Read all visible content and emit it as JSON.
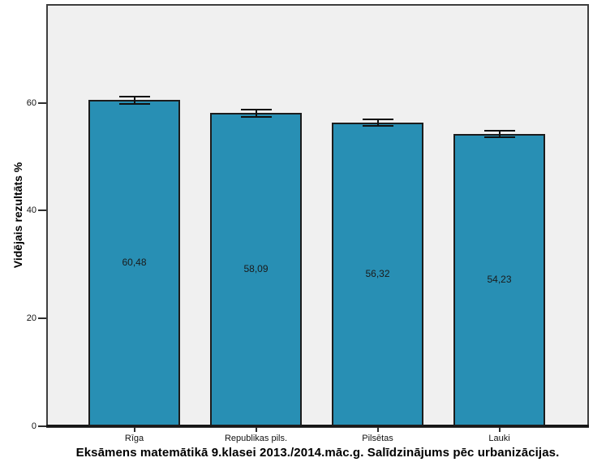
{
  "figure": {
    "kind": "spss-style-bar-chart"
  },
  "chart_data": {
    "type": "bar",
    "title": "Eksāmens matemātikā 9.klasei 2013./2014.māc.g. Salīdzinājums pēc urbanizācijas.",
    "xlabel": "",
    "ylabel": "Vidējais rezultāts %",
    "categories": [
      "Rīga",
      "Republikas pils.",
      "Pilsētas",
      "Lauki"
    ],
    "values": [
      60.48,
      58.09,
      56.32,
      54.23
    ],
    "value_labels": [
      "60,48",
      "58,09",
      "56,32",
      "54,23"
    ],
    "error_bars": [
      0.8,
      0.8,
      0.75,
      0.78
    ],
    "ylim": [
      0,
      78
    ],
    "yticks": [
      0,
      20,
      40,
      60
    ],
    "grid": false,
    "legend": "none",
    "bar_color": "#288fb4",
    "bar_border_color": "#1c1c1c",
    "plot_background": "#f0f0f0",
    "frame_color": "#3e3e3e",
    "error_bar_color": "#111111",
    "text_color": "#000000"
  }
}
